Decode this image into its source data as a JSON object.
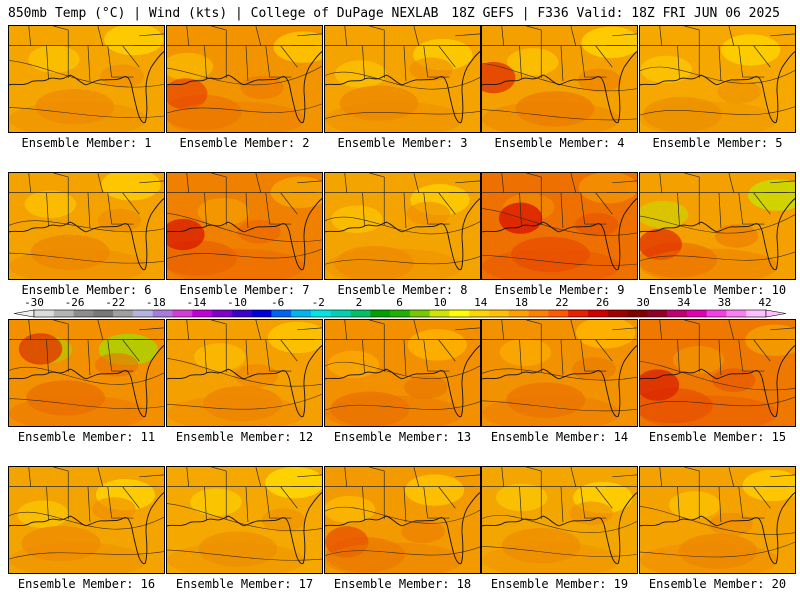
{
  "header": {
    "left": "850mb Temp (°C) | Wind (kts) | College of DuPage NEXLAB",
    "right": "18Z GEFS | F336 Valid: 18Z FRI JUN 06 2025"
  },
  "colorbar": {
    "ticks": [
      "-30",
      "-26",
      "-22",
      "-18",
      "-14",
      "-10",
      "-6",
      "-2",
      "2",
      "6",
      "10",
      "14",
      "18",
      "22",
      "26",
      "30",
      "34",
      "38",
      "42"
    ],
    "colors": [
      "#dcdcdc",
      "#b4b4b4",
      "#8c8c8c",
      "#787878",
      "#a0a0a0",
      "#b4b4dc",
      "#a87cd8",
      "#d43cd8",
      "#c000d8",
      "#8000c8",
      "#3c00c8",
      "#0000d8",
      "#0064f0",
      "#00b4f0",
      "#00e4e4",
      "#00d0b0",
      "#00c068",
      "#00a000",
      "#20b000",
      "#78c800",
      "#d0e400",
      "#ffff00",
      "#ffd700",
      "#ffc000",
      "#ffa000",
      "#ff8000",
      "#ff5a00",
      "#e82000",
      "#d00000",
      "#a00000",
      "#800000",
      "#900028",
      "#c00070",
      "#e000b0",
      "#f040e0",
      "#f880f0",
      "#ffc0ff"
    ]
  },
  "panels": [
    {
      "label": "Ensemble Member: 1",
      "base": "#f4a500",
      "warm": "#ee8c00",
      "cool": "#ffd200",
      "hot": null
    },
    {
      "label": "Ensemble Member: 2",
      "base": "#f29400",
      "warm": "#ec7800",
      "cool": "#ffc800",
      "hot": "#e84a00"
    },
    {
      "label": "Ensemble Member: 3",
      "base": "#f4a300",
      "warm": "#ee8a00",
      "cool": "#ffd000",
      "hot": null
    },
    {
      "label": "Ensemble Member: 4",
      "base": "#f4a000",
      "warm": "#ec7e00",
      "cool": "#ffd600",
      "hot": "#e03000"
    },
    {
      "label": "Ensemble Member: 5",
      "base": "#f6a800",
      "warm": "#ee9000",
      "cool": "#ffd400",
      "hot": null
    },
    {
      "label": "Ensemble Member: 6",
      "base": "#f4a200",
      "warm": "#ee8800",
      "cool": "#ffd000",
      "hot": null
    },
    {
      "label": "Ensemble Member: 7",
      "base": "#f08000",
      "warm": "#ea6400",
      "cool": "#f8a800",
      "hot": "#d81800"
    },
    {
      "label": "Ensemble Member: 8",
      "base": "#f4a400",
      "warm": "#ee8c00",
      "cool": "#ffd000",
      "hot": null
    },
    {
      "label": "Ensemble Member: 9",
      "base": "#ee7000",
      "warm": "#e85000",
      "cool": "#f49400",
      "hot": "#d81000"
    },
    {
      "label": "Ensemble Member: 10",
      "base": "#f4a000",
      "warm": "#ec7800",
      "cool": "#c8e000",
      "hot": "#e03000"
    },
    {
      "label": "Ensemble Member: 11",
      "base": "#f29000",
      "warm": "#ea7000",
      "cool": "#a8d800",
      "hot": "#e03000"
    },
    {
      "label": "Ensemble Member: 12",
      "base": "#f4a000",
      "warm": "#ee8400",
      "cool": "#ffc800",
      "hot": null
    },
    {
      "label": "Ensemble Member: 13",
      "base": "#f29000",
      "warm": "#ea7400",
      "cool": "#ffb400",
      "hot": null
    },
    {
      "label": "Ensemble Member: 14",
      "base": "#f29200",
      "warm": "#ea7600",
      "cool": "#ffb800",
      "hot": null
    },
    {
      "label": "Ensemble Member: 15",
      "base": "#ee7800",
      "warm": "#e85400",
      "cool": "#f4a000",
      "hot": "#d82000"
    },
    {
      "label": "Ensemble Member: 16",
      "base": "#f4a400",
      "warm": "#ee8c00",
      "cool": "#ffd400",
      "hot": null
    },
    {
      "label": "Ensemble Member: 17",
      "base": "#f4a800",
      "warm": "#ee9000",
      "cool": "#ffdc00",
      "hot": null
    },
    {
      "label": "Ensemble Member: 18",
      "base": "#f29a00",
      "warm": "#ec7c00",
      "cool": "#ffc800",
      "hot": "#e85000"
    },
    {
      "label": "Ensemble Member: 19",
      "base": "#f4a600",
      "warm": "#ee8e00",
      "cool": "#ffd400",
      "hot": null
    },
    {
      "label": "Ensemble Member: 20",
      "base": "#f4a200",
      "warm": "#ee8800",
      "cool": "#ffd000",
      "hot": null
    }
  ]
}
